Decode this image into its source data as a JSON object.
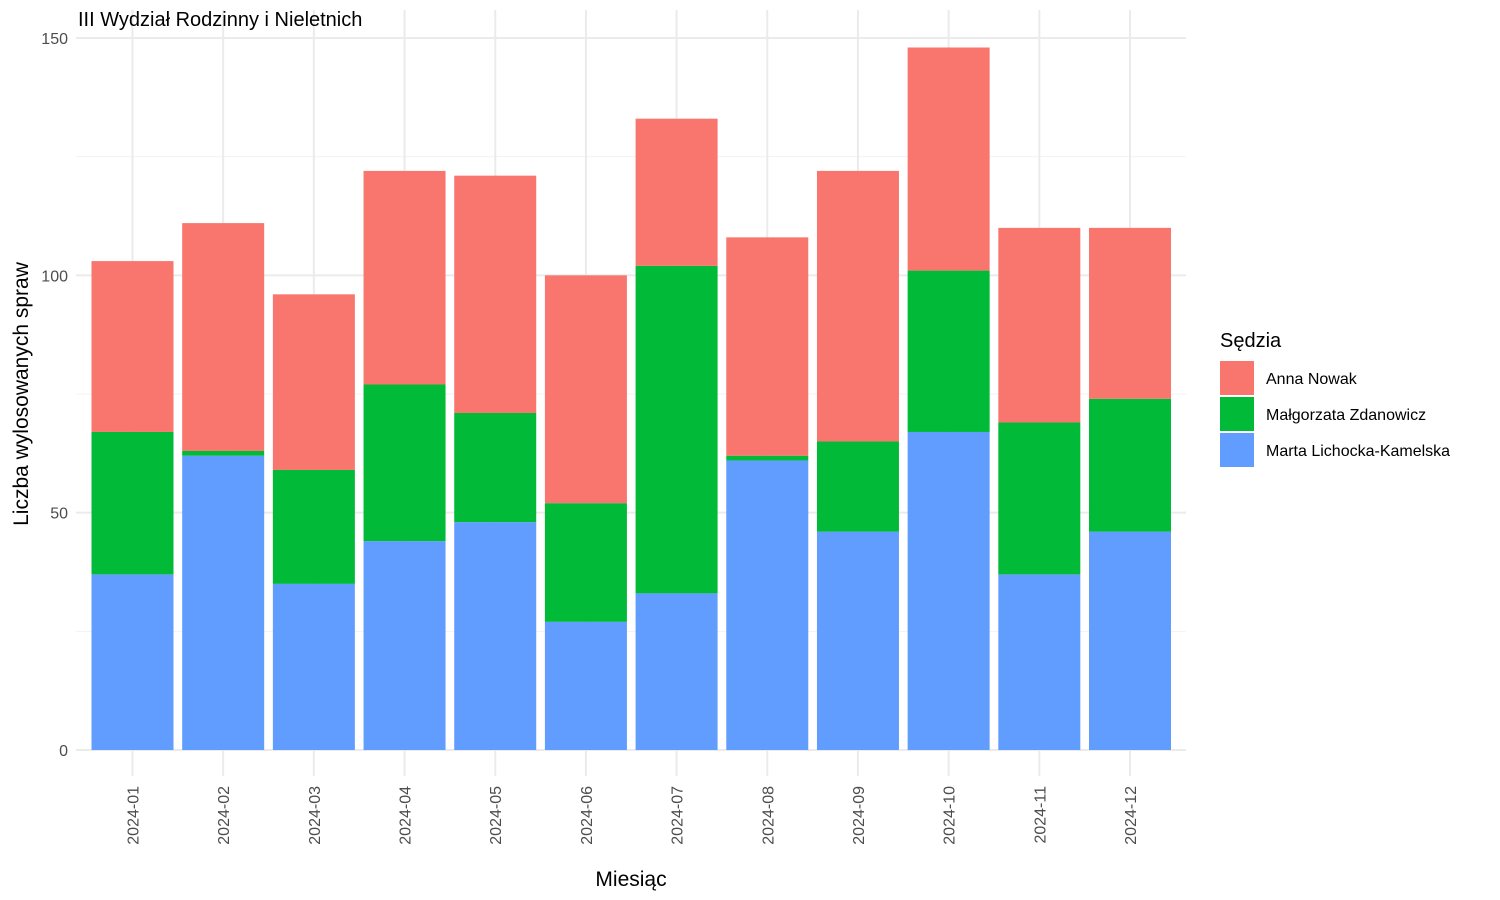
{
  "chart_data": {
    "type": "bar",
    "stacked": true,
    "title": "III Wydział Rodzinny i Nieletnich",
    "xlabel": "Miesiąc",
    "ylabel": "Liczba wylosowanych spraw",
    "ylim": [
      0,
      150
    ],
    "yticks": [
      0,
      50,
      100,
      150
    ],
    "grid": true,
    "categories": [
      "2024-01",
      "2024-02",
      "2024-03",
      "2024-04",
      "2024-05",
      "2024-06",
      "2024-07",
      "2024-08",
      "2024-09",
      "2024-10",
      "2024-11",
      "2024-12"
    ],
    "legend": {
      "title": "Sędzia",
      "position": "right"
    },
    "series": [
      {
        "name": "Marta Lichocka-Kamelska",
        "color": "#619CFF",
        "values": [
          37,
          62,
          35,
          44,
          48,
          27,
          33,
          61,
          46,
          67,
          37,
          46
        ]
      },
      {
        "name": "Małgorzata Zdanowicz",
        "color": "#00BA38",
        "values": [
          30,
          1,
          24,
          33,
          23,
          25,
          69,
          1,
          19,
          34,
          32,
          28
        ]
      },
      {
        "name": "Anna Nowak",
        "color": "#F8766D",
        "values": [
          36,
          48,
          37,
          45,
          50,
          48,
          31,
          46,
          57,
          47,
          41,
          36
        ]
      }
    ],
    "legend_order": [
      "Anna Nowak",
      "Małgorzata Zdanowicz",
      "Marta Lichocka-Kamelska"
    ]
  }
}
